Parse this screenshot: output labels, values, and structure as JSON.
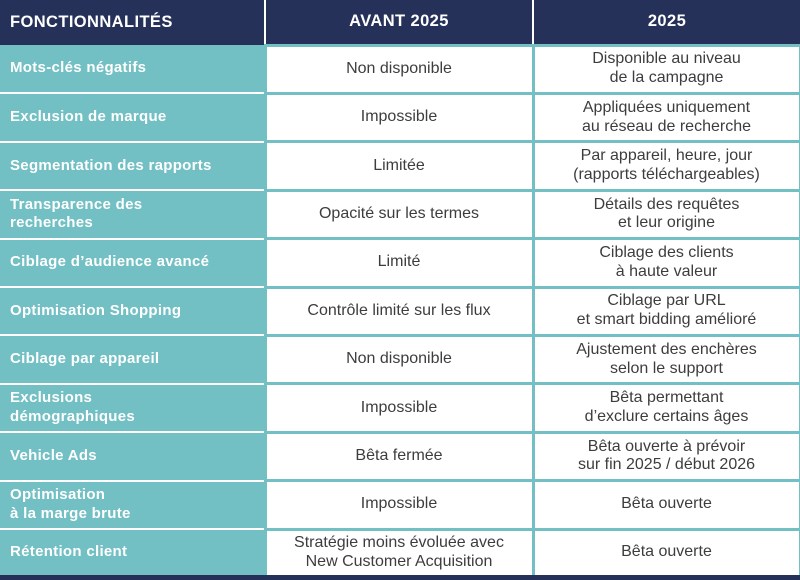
{
  "colors": {
    "header_background": "#26315a",
    "feature_column_background": "#72bfc4",
    "cell_border": "#72bfc4",
    "cell_text": "#3d3d3d",
    "header_text": "#ffffff"
  },
  "table": {
    "columns": [
      "FONCTIONNALITÉS",
      "AVANT 2025",
      "2025"
    ],
    "rows": [
      {
        "feature": "Mots-clés négatifs",
        "avant": "Non disponible",
        "apres": "Disponible au niveau\nde la campagne"
      },
      {
        "feature": "Exclusion de marque",
        "avant": "Impossible",
        "apres": "Appliquées uniquement\nau réseau de recherche"
      },
      {
        "feature": "Segmentation des rapports",
        "avant": "Limitée",
        "apres": "Par appareil, heure, jour\n(rapports téléchargeables)"
      },
      {
        "feature": "Transparence des\nrecherches",
        "avant": "Opacité sur les termes",
        "apres": "Détails des requêtes\net leur origine"
      },
      {
        "feature": "Ciblage d’audience avancé",
        "avant": "Limité",
        "apres": "Ciblage des clients\nà haute valeur"
      },
      {
        "feature": "Optimisation Shopping",
        "avant": "Contrôle limité sur les flux",
        "apres": "Ciblage par URL\net smart bidding amélioré"
      },
      {
        "feature": "Ciblage par appareil",
        "avant": "Non disponible",
        "apres": "Ajustement des enchères\nselon le support"
      },
      {
        "feature": "Exclusions\ndémographiques",
        "avant": "Impossible",
        "apres": "Bêta permettant\nd’exclure certains âges"
      },
      {
        "feature": "Vehicle Ads",
        "avant": "Bêta fermée",
        "apres": "Bêta ouverte à prévoir\nsur fin 2025 / début 2026"
      },
      {
        "feature": "Optimisation\nà la marge brute",
        "avant": "Impossible",
        "apres": "Bêta ouverte"
      },
      {
        "feature": "Rétention client",
        "avant": "Stratégie moins évoluée avec\nNew Customer Acquisition",
        "apres": "Bêta ouverte"
      }
    ]
  }
}
